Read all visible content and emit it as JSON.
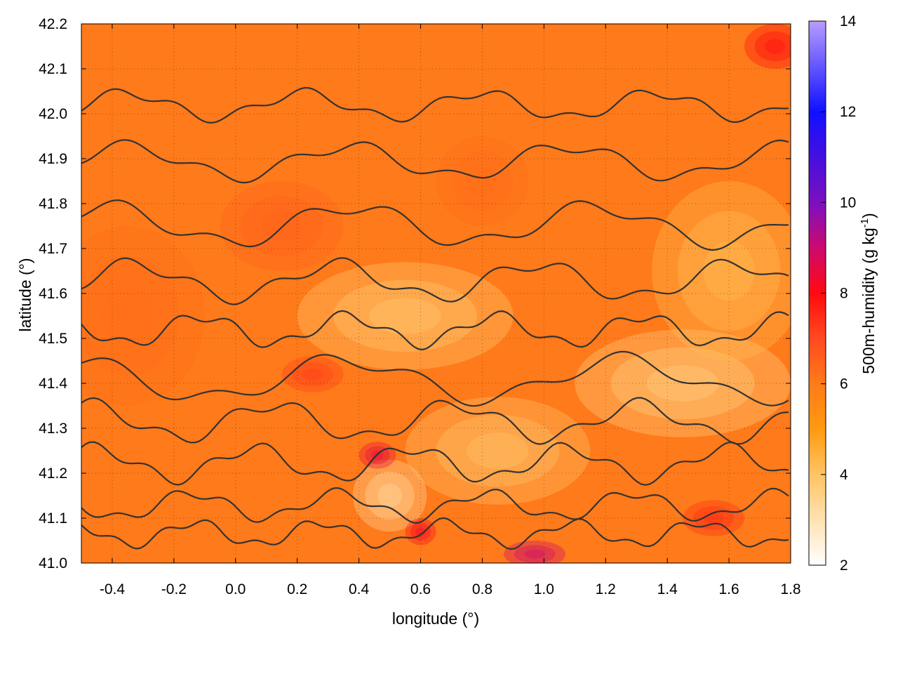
{
  "chart_data": {
    "type": "heatmap",
    "xlabel": "longitude (°)",
    "ylabel": "latitude (°)",
    "colorbar_label": "500m-humidity (g kg",
    "colorbar_label_sup": "-1",
    "colorbar_label_close": ")",
    "xlim": [
      -0.5,
      1.8
    ],
    "ylim": [
      41.0,
      42.2
    ],
    "x_ticks": [
      -0.4,
      -0.2,
      0.0,
      0.2,
      0.4,
      0.6,
      0.8,
      1.0,
      1.2,
      1.4,
      1.6,
      1.8
    ],
    "x_tick_labels": [
      "-0.4",
      "-0.2",
      "0.0",
      "0.2",
      "0.4",
      "0.6",
      "0.8",
      "1.0",
      "1.2",
      "1.4",
      "1.6",
      "1.8"
    ],
    "y_ticks": [
      41.0,
      41.1,
      41.2,
      41.3,
      41.4,
      41.5,
      41.6,
      41.7,
      41.8,
      41.9,
      42.0,
      42.1,
      42.2
    ],
    "y_tick_labels": [
      "41.0",
      "41.1",
      "41.2",
      "41.3",
      "41.4",
      "41.5",
      "41.6",
      "41.7",
      "41.8",
      "41.9",
      "42.0",
      "42.1",
      "42.2"
    ],
    "colorbar_range": [
      2,
      14
    ],
    "colorbar_ticks": [
      2,
      4,
      6,
      8,
      10,
      12,
      14
    ],
    "colorbar_tick_labels": [
      "2",
      "4",
      "6",
      "8",
      "10",
      "12",
      "14"
    ],
    "colorscale": [
      {
        "value": 2,
        "color": "#ffffff"
      },
      {
        "value": 4,
        "color": "#ffc464"
      },
      {
        "value": 5,
        "color": "#ff9a10"
      },
      {
        "value": 6,
        "color": "#ff7a1a"
      },
      {
        "value": 7,
        "color": "#ff4a1e"
      },
      {
        "value": 8,
        "color": "#ff0a10"
      },
      {
        "value": 9,
        "color": "#cc0a70"
      },
      {
        "value": 10,
        "color": "#7a10c0"
      },
      {
        "value": 12,
        "color": "#1010ff"
      },
      {
        "value": 14,
        "color": "#b89cff"
      }
    ],
    "grid": true,
    "contour_color": "#333333",
    "features": [
      {
        "lon": 0.55,
        "lat": 41.55,
        "value": 3.8,
        "rx": 0.35,
        "ry": 0.12
      },
      {
        "lon": 1.45,
        "lat": 41.4,
        "value": 3.6,
        "rx": 0.35,
        "ry": 0.12
      },
      {
        "lon": 0.5,
        "lat": 41.15,
        "value": 3.2,
        "rx": 0.12,
        "ry": 0.08
      },
      {
        "lon": 0.85,
        "lat": 41.25,
        "value": 3.9,
        "rx": 0.3,
        "ry": 0.12
      },
      {
        "lon": 1.6,
        "lat": 41.65,
        "value": 4.2,
        "rx": 0.25,
        "ry": 0.2
      },
      {
        "lon": -0.35,
        "lat": 41.55,
        "value": 6.3,
        "rx": 0.25,
        "ry": 0.2
      },
      {
        "lon": 0.15,
        "lat": 41.75,
        "value": 6.5,
        "rx": 0.2,
        "ry": 0.1
      },
      {
        "lon": 0.46,
        "lat": 41.24,
        "value": 8.5,
        "rx": 0.06,
        "ry": 0.03
      },
      {
        "lon": 0.25,
        "lat": 41.42,
        "value": 7.2,
        "rx": 0.1,
        "ry": 0.04
      },
      {
        "lon": 0.97,
        "lat": 41.02,
        "value": 9.0,
        "rx": 0.1,
        "ry": 0.03
      },
      {
        "lon": 0.6,
        "lat": 41.07,
        "value": 8.2,
        "rx": 0.05,
        "ry": 0.03
      },
      {
        "lon": 1.55,
        "lat": 41.1,
        "value": 7.5,
        "rx": 0.1,
        "ry": 0.04
      },
      {
        "lon": 1.75,
        "lat": 42.15,
        "value": 8.0,
        "rx": 0.1,
        "ry": 0.05
      },
      {
        "lon": 0.8,
        "lat": 41.85,
        "value": 6.3,
        "rx": 0.15,
        "ry": 0.1
      }
    ]
  }
}
